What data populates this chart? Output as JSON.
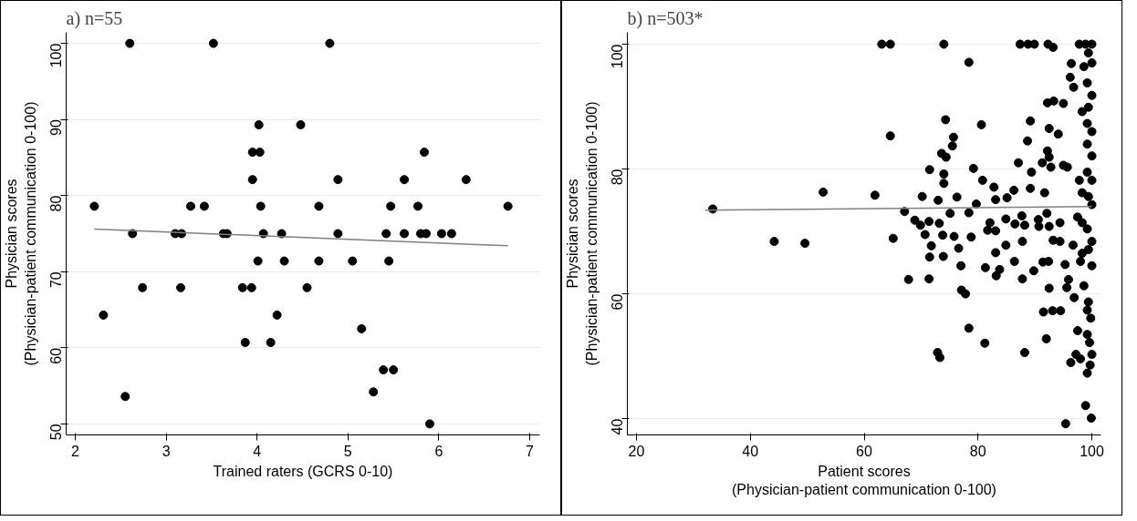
{
  "chart_data": [
    {
      "type": "scatter",
      "title": "a) n=55",
      "xlabel": "Trained raters (GCRS 0-10)",
      "ylabel": "Physician scores\n(Physician-patient communication 0-100)",
      "xlim": [
        1.9,
        7.11
      ],
      "ylim": [
        48.55,
        101.45
      ],
      "xticks": [
        2,
        3,
        4,
        5,
        6,
        7
      ],
      "yticks": [
        50,
        60,
        70,
        80,
        90,
        100
      ],
      "grid": "y",
      "series": [
        {
          "marker": "circle",
          "color": "#000000",
          "x": [
            2.21,
            2.6,
            2.31,
            2.55,
            2.63,
            2.74,
            3.1,
            3.17,
            3.16,
            3.27,
            3.42,
            3.52,
            3.63,
            3.67,
            3.84,
            3.87,
            3.94,
            3.95,
            3.95,
            4.02,
            4.03,
            4.04,
            4.01,
            4.07,
            4.15,
            4.22,
            4.27,
            4.3,
            4.48,
            4.55,
            4.68,
            4.68,
            4.8,
            4.89,
            4.89,
            5.05,
            5.15,
            5.28,
            5.39,
            5.5,
            5.42,
            5.47,
            5.45,
            5.62,
            5.62,
            5.77,
            5.8,
            5.86,
            5.84,
            5.9,
            6.03,
            6.14,
            6.3,
            6.76
          ],
          "values": [
            78.6,
            100,
            64.3,
            53.6,
            75,
            67.9,
            75,
            75,
            67.9,
            78.6,
            78.6,
            100,
            75,
            75,
            67.9,
            60.7,
            67.9,
            85.7,
            82.1,
            89.3,
            85.7,
            78.6,
            71.4,
            75,
            60.7,
            64.3,
            75,
            71.4,
            89.3,
            67.9,
            78.6,
            71.4,
            100,
            82.1,
            75,
            71.4,
            62.5,
            54.2,
            57.1,
            57.1,
            75,
            78.6,
            71.4,
            82.1,
            75,
            78.6,
            75,
            75,
            85.7,
            50,
            75,
            75,
            82.1,
            78.6
          ]
        },
        {
          "type": "line",
          "color": "#808080",
          "x": [
            2.21,
            6.76
          ],
          "values": [
            75.6,
            73.4
          ]
        }
      ]
    },
    {
      "type": "scatter",
      "title": "b) n=503*",
      "xlabel": "Patient scores\n(Physician-patient communication 0-100)",
      "ylabel": "Physician scores\n(Physician-patient communication 0-100)",
      "xlim": [
        18.4,
        101.6
      ],
      "ylim": [
        37.4,
        101.9
      ],
      "xticks": [
        20,
        40,
        60,
        80,
        100
      ],
      "yticks": [
        40,
        60,
        80,
        100
      ],
      "grid": "y",
      "series": [
        {
          "marker": "circle",
          "color": "#000000",
          "x": [
            33.4,
            44.2,
            49.6,
            52.8,
            63.1,
            64.6,
            74.0,
            87.4,
            88.8,
            89.9,
            92.3,
            93.2,
            97.8,
            98.9,
            100,
            78.4,
            96.4,
            96.2,
            96.8,
            92.2,
            93.3,
            95.0,
            74.3,
            64.6,
            80.6,
            89.2,
            92.5,
            94.1,
            88.7,
            75.7,
            75.5,
            73.6,
            74.4,
            92.2,
            92.5,
            71.5,
            74.0,
            74.0,
            79.2,
            80.8,
            87.1,
            89.4,
            91.3,
            92.8,
            95.0,
            95.7,
            61.9,
            67.1,
            68.9,
            69.9,
            70.2,
            71.4,
            70.7,
            71.8,
            71.5,
            71.4,
            67.8,
            65.1,
            73.0,
            73.2,
            73.8,
            73.9,
            75.1,
            75.8,
            76.3,
            76.6,
            77.0,
            77.1,
            77.8,
            78.4,
            72.9,
            73.3,
            78.4,
            78.8,
            79.7,
            81.3,
            81.2,
            81.7,
            82.1,
            82.8,
            83.1,
            83.1,
            83.1,
            83.2,
            83.8,
            84.9,
            85.1,
            84.9,
            86.3,
            86.5,
            86.4,
            87.7,
            87.8,
            88.2,
            87.8,
            88.2,
            89.2,
            89.8,
            90.6,
            90.7,
            91.4,
            91.7,
            92.1,
            92.5,
            92.4,
            92.5,
            91.5,
            93.1,
            94.5,
            92.0,
            93.2,
            94.4,
            94.4,
            95.3,
            95.9,
            95.6,
            96.3,
            95.4,
            96.9,
            97.2,
            98.0,
            98.9,
            99.9,
            99.2,
            99.7,
            99.6,
            99.8,
            99.2,
            98.6,
            100,
            98.3,
            100,
            99.2,
            97.5,
            100,
            98.3,
            100,
            99.2,
            100,
            99.2,
            100,
            98.3,
            100,
            99.2,
            100,
            98.6,
            99.4,
            96.7,
            98.0,
            99.4,
            97.5,
            99.4,
            99.2,
            100,
            98.3,
            99.4,
            97.8,
            99.4,
            99.2
          ],
          "values": [
            73.6,
            68.4,
            68.1,
            76.3,
            100,
            100,
            100,
            100,
            100,
            100,
            100,
            99.5,
            100,
            100,
            100,
            97.1,
            96.9,
            94.7,
            93.1,
            90.6,
            90.9,
            90.5,
            87.9,
            85.3,
            87.1,
            87.7,
            86.5,
            85.6,
            84.5,
            85.1,
            83.7,
            82.5,
            81.9,
            82.9,
            81.9,
            79.9,
            79.2,
            77.7,
            80.1,
            78.2,
            81.0,
            79.5,
            81.0,
            80.3,
            80.6,
            80.3,
            75.8,
            73.2,
            71.8,
            71.0,
            75.6,
            71.6,
            69.5,
            67.7,
            65.9,
            62.4,
            62.3,
            68.9,
            75.0,
            71.3,
            69.4,
            66.0,
            72.9,
            69.2,
            75.5,
            67.3,
            64.5,
            60.6,
            60.0,
            54.5,
            50.6,
            49.8,
            73.0,
            69.1,
            74.4,
            64.2,
            52.1,
            70.2,
            71.4,
            77.1,
            75.1,
            70.1,
            66.6,
            62.9,
            63.9,
            72.0,
            75.4,
            67.8,
            76.6,
            71.2,
            65.2,
            72.5,
            68.4,
            71.0,
            62.4,
            50.6,
            76.9,
            63.7,
            71.9,
            70.8,
            65.1,
            76.2,
            72.9,
            70.8,
            65.2,
            60.9,
            57.1,
            57.3,
            57.3,
            52.8,
            68.6,
            68.4,
            71.4,
            64.7,
            62.3,
            61.0,
            49.0,
            39.2,
            59.4,
            50.3,
            49.6,
            42.1,
            40.1,
            47.3,
            48.6,
            52.2,
            56.1,
            57.4,
            61.3,
            64.5,
            66.5,
            68.4,
            70.4,
            72.3,
            74.3,
            76.2,
            78.2,
            79.5,
            82.1,
            84.0,
            86.0,
            89.2,
            91.8,
            93.8,
            97.0,
            96.4,
            98.6,
            67.8,
            65.2,
            67.1,
            54.1,
            58.7,
            53.5,
            50.3,
            71.4,
            75.6,
            78.2,
            89.9,
            87.3
          ]
        },
        {
          "type": "line",
          "color": "#808080",
          "x": [
            32.1,
            100
          ],
          "values": [
            73.4,
            74.0
          ]
        }
      ]
    }
  ]
}
